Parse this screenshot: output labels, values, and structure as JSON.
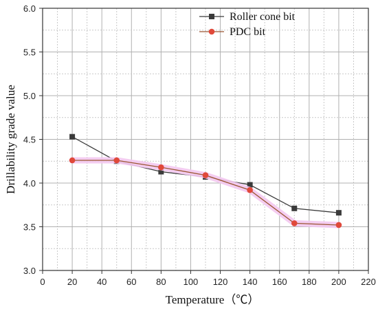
{
  "chart_data": {
    "type": "line",
    "xlabel": "Temperature（℃）",
    "ylabel": "Drillability grade value",
    "xlim": [
      0,
      220
    ],
    "ylim": [
      3.0,
      6.0
    ],
    "x_ticks": [
      0,
      20,
      40,
      60,
      80,
      100,
      120,
      140,
      160,
      180,
      200,
      220
    ],
    "y_ticks": [
      "3.0",
      "3.5",
      "4.0",
      "4.5",
      "5.0",
      "5.5",
      "6.0"
    ],
    "grid": true,
    "legend_position": "top-right",
    "x": [
      20,
      50,
      80,
      110,
      140,
      170,
      200
    ],
    "series": [
      {
        "name": "Roller cone bit",
        "marker": "square",
        "color": "#3a3a3a",
        "line_color": "#3a3a3a",
        "values": [
          4.53,
          4.25,
          4.13,
          4.07,
          3.98,
          3.71,
          3.66
        ]
      },
      {
        "name": "PDC bit",
        "marker": "circle",
        "color": "#e0493a",
        "line_color": "#9a5530",
        "highlight_color": "#f3c8f0",
        "values": [
          4.26,
          4.26,
          4.18,
          4.09,
          3.92,
          3.54,
          3.52
        ]
      }
    ]
  }
}
